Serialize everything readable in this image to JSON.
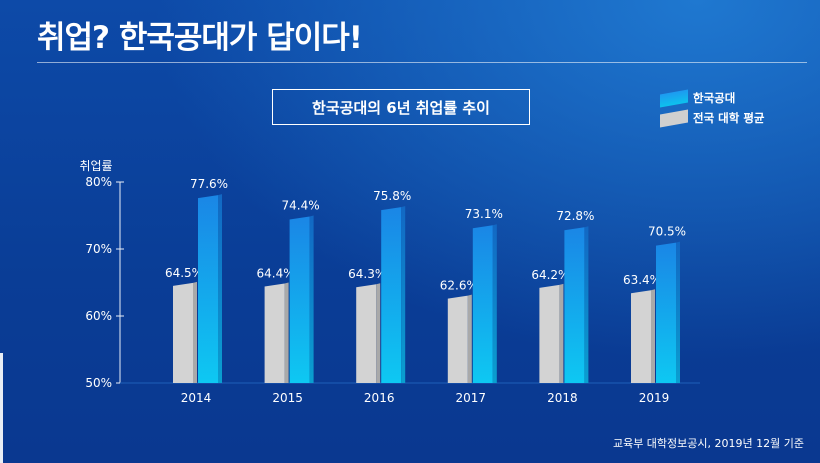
{
  "headline": "취업? 한국공대가 답이다!",
  "chart_title": "한국공대의 6년 취업률 추이",
  "legend": [
    {
      "label": "한국공대",
      "color": "#1e9af0"
    },
    {
      "label": "전국 대학 평균",
      "color": "#cfcfcf"
    }
  ],
  "source_note": "교육부 대학정보공시, 2019년 12월 기준",
  "chart_data": {
    "type": "bar",
    "ylabel": "취업률",
    "ylim": [
      50,
      80
    ],
    "yticks": [
      "50%",
      "60%",
      "70%",
      "80%"
    ],
    "categories": [
      "2014",
      "2015",
      "2016",
      "2017",
      "2018",
      "2019"
    ],
    "series": [
      {
        "name": "전국 대학 평균",
        "values": [
          64.5,
          64.4,
          64.3,
          62.6,
          64.2,
          63.4
        ],
        "labels": [
          "64.5%",
          "64.4%",
          "64.3%",
          "62.6%",
          "64.2%",
          "63.4%"
        ],
        "color": "#cfcfcf"
      },
      {
        "name": "한국공대",
        "values": [
          77.6,
          74.4,
          75.8,
          73.1,
          72.8,
          70.5
        ],
        "labels": [
          "77.6%",
          "74.4%",
          "75.8%",
          "73.1%",
          "72.8%",
          "70.5%"
        ],
        "color": "#1e9af0"
      }
    ]
  }
}
